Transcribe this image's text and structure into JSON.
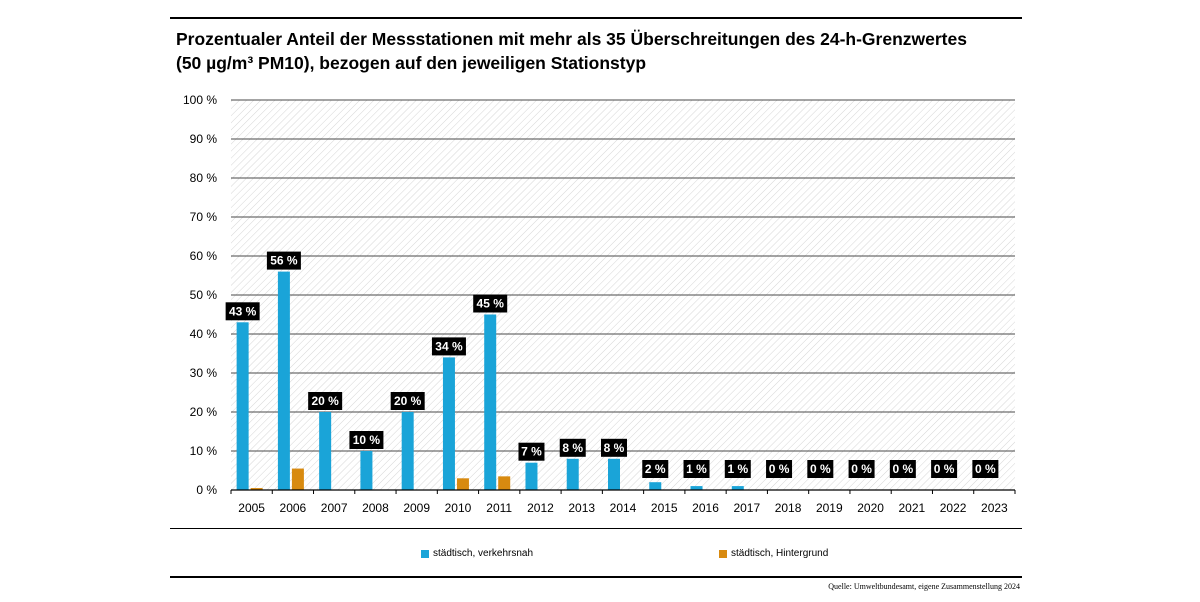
{
  "title_lines": [
    "Prozentualer Anteil der Messstationen mit mehr als 35 Überschreitungen des 24-h-Grenzwertes",
    "(50 µg/m³ PM10), bezogen auf den jeweiligen Stationstyp"
  ],
  "source": "Quelle: Umweltbundesamt, eigene Zusammenstellung 2024",
  "colors": {
    "series1": "#1aa4d8",
    "series2": "#d88a10",
    "label_bg": "#000000",
    "grid": "#4a4a4a"
  },
  "chart_data": {
    "type": "bar",
    "title": "Prozentualer Anteil der Messstationen mit mehr als 35 Überschreitungen des 24-h-Grenzwertes (50 µg/m³ PM10), bezogen auf den jeweiligen Stationstyp",
    "categories": [
      "2005",
      "2006",
      "2007",
      "2008",
      "2009",
      "2010",
      "2011",
      "2012",
      "2013",
      "2014",
      "2015",
      "2016",
      "2017",
      "2018",
      "2019",
      "2020",
      "2021",
      "2022",
      "2023"
    ],
    "series": [
      {
        "name": "städtisch, verkehrsnah",
        "values": [
          43,
          56,
          20,
          10,
          20,
          34,
          45,
          7,
          8,
          8,
          2,
          1,
          1,
          0,
          0,
          0,
          0,
          0,
          0
        ]
      },
      {
        "name": "städtisch, Hintergrund",
        "values": [
          0.5,
          5.5,
          0,
          0,
          0,
          3,
          3.5,
          0,
          0,
          0,
          0,
          0,
          0,
          0,
          0,
          0,
          0,
          0,
          0
        ]
      }
    ],
    "data_labels": [
      "43 %",
      "56 %",
      "20 %",
      "10 %",
      "20 %",
      "34 %",
      "45 %",
      "7 %",
      "8 %",
      "8 %",
      "2 %",
      "1 %",
      "1 %",
      "0 %",
      "0 %",
      "0 %",
      "0 %",
      "0 %",
      "0 %"
    ],
    "y_ticks": [
      "0 %",
      "10 %",
      "20 %",
      "30 %",
      "40 %",
      "50 %",
      "60 %",
      "70 %",
      "80 %",
      "90 %",
      "100 %"
    ],
    "ylim": [
      0,
      100
    ],
    "xlabel": "",
    "ylabel": "",
    "grid": true,
    "legend_position": "bottom"
  }
}
